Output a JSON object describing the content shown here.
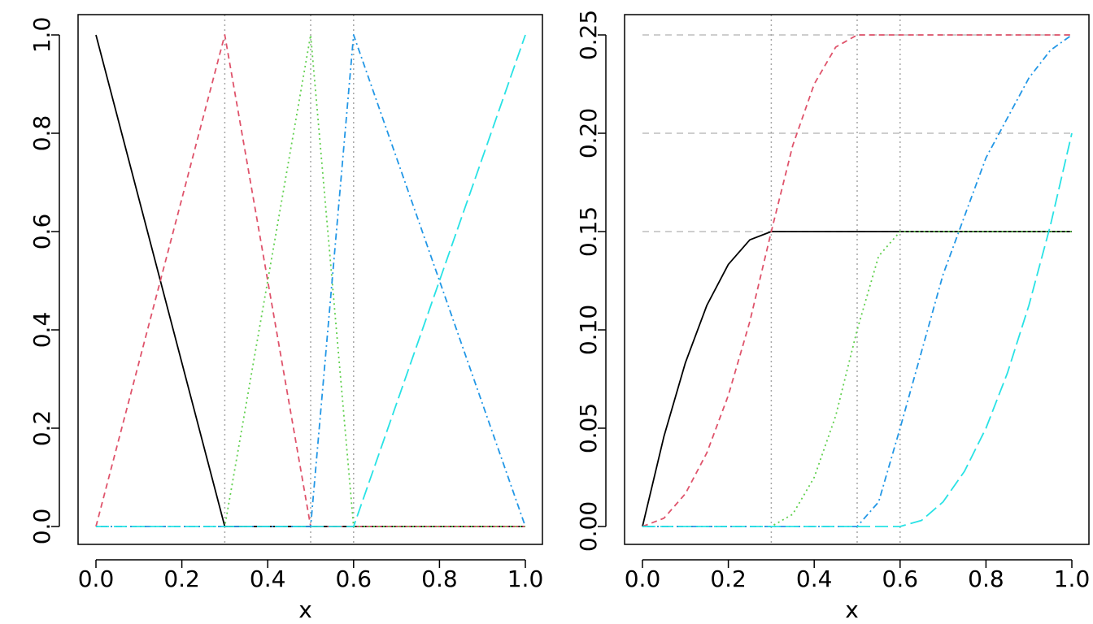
{
  "chart_data": [
    {
      "type": "line",
      "xlabel": "x",
      "ylabel": "",
      "xlim": [
        0.0,
        1.0
      ],
      "ylim": [
        0.0,
        1.0
      ],
      "x_ticks": [
        "0.0",
        "0.2",
        "0.4",
        "0.6",
        "0.8",
        "1.0"
      ],
      "y_ticks": [
        "0.0",
        "0.2",
        "0.4",
        "0.6",
        "0.8",
        "1.0"
      ],
      "knots": [
        0.3,
        0.5,
        0.6
      ],
      "hlines": [],
      "series": [
        {
          "color": "#000000",
          "dash": "solid",
          "x": [
            0.0,
            0.3,
            1.0
          ],
          "y": [
            1.0,
            0.0,
            0.0
          ]
        },
        {
          "color": "#DF536B",
          "dash": "dashed",
          "x": [
            0.0,
            0.3,
            0.5,
            1.0
          ],
          "y": [
            0.0,
            1.0,
            0.0,
            0.0
          ]
        },
        {
          "color": "#61D04F",
          "dash": "dotted",
          "x": [
            0.0,
            0.3,
            0.5,
            0.6,
            1.0
          ],
          "y": [
            0.0,
            0.0,
            1.0,
            0.0,
            0.0
          ]
        },
        {
          "color": "#2297E6",
          "dash": "dotdash",
          "x": [
            0.0,
            0.5,
            0.6,
            1.0
          ],
          "y": [
            0.0,
            0.0,
            1.0,
            0.0
          ]
        },
        {
          "color": "#28E2E5",
          "dash": "longdash",
          "x": [
            0.0,
            0.6,
            1.0
          ],
          "y": [
            0.0,
            0.0,
            1.0
          ]
        }
      ]
    },
    {
      "type": "line",
      "xlabel": "x",
      "ylabel": "",
      "xlim": [
        0.0,
        1.0
      ],
      "ylim": [
        0.0,
        0.25
      ],
      "x_ticks": [
        "0.0",
        "0.2",
        "0.4",
        "0.6",
        "0.8",
        "1.0"
      ],
      "y_ticks": [
        "0.00",
        "0.05",
        "0.10",
        "0.15",
        "0.20",
        "0.25"
      ],
      "knots": [
        0.3,
        0.5,
        0.6
      ],
      "hlines": [
        0.15,
        0.2,
        0.25
      ],
      "series": [
        {
          "color": "#000000",
          "dash": "solid",
          "x": [
            0.0,
            0.05,
            0.1,
            0.15,
            0.2,
            0.25,
            0.3,
            1.0
          ],
          "y": [
            0.0,
            0.0458,
            0.0833,
            0.1125,
            0.1333,
            0.1458,
            0.15,
            0.15
          ]
        },
        {
          "color": "#DF536B",
          "dash": "dashed",
          "x": [
            0.0,
            0.05,
            0.1,
            0.15,
            0.2,
            0.25,
            0.3,
            0.35,
            0.4,
            0.45,
            0.5,
            1.0
          ],
          "y": [
            0.0,
            0.0042,
            0.0167,
            0.0375,
            0.0667,
            0.1042,
            0.15,
            0.1938,
            0.225,
            0.2438,
            0.25,
            0.25
          ]
        },
        {
          "color": "#61D04F",
          "dash": "dotted",
          "x": [
            0.0,
            0.3,
            0.35,
            0.4,
            0.45,
            0.5,
            0.55,
            0.6,
            1.0
          ],
          "y": [
            0.0,
            0.0,
            0.00625,
            0.025,
            0.05625,
            0.1,
            0.1375,
            0.15,
            0.15
          ]
        },
        {
          "color": "#2297E6",
          "dash": "dotdash",
          "x": [
            0.0,
            0.5,
            0.55,
            0.6,
            0.7,
            0.8,
            0.9,
            0.95,
            1.0
          ],
          "y": [
            0.0,
            0.0,
            0.0125,
            0.05,
            0.1281,
            0.1875,
            0.2281,
            0.2422,
            0.25
          ]
        },
        {
          "color": "#28E2E5",
          "dash": "longdash",
          "x": [
            0.0,
            0.6,
            0.65,
            0.7,
            0.75,
            0.8,
            0.85,
            0.9,
            0.95,
            1.0
          ],
          "y": [
            0.0,
            0.0,
            0.0031,
            0.0125,
            0.0281,
            0.05,
            0.0781,
            0.1125,
            0.1531,
            0.2
          ]
        }
      ]
    }
  ]
}
